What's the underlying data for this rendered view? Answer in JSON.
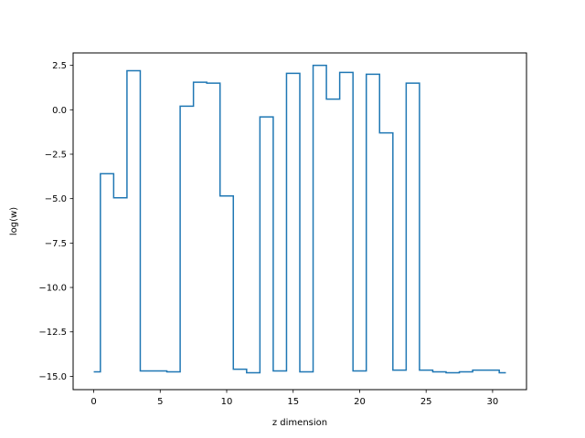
{
  "chart_data": {
    "type": "line",
    "drawstyle": "steps-mid",
    "title": "",
    "xlabel": "z dimension",
    "ylabel": "log(w)",
    "xlim": [
      -1.55,
      32.55
    ],
    "ylim": [
      -15.75,
      3.2
    ],
    "xticks": [
      0,
      5,
      10,
      15,
      20,
      25,
      30
    ],
    "xtick_labels": [
      "0",
      "5",
      "10",
      "15",
      "20",
      "25",
      "30"
    ],
    "yticks": [
      2.5,
      0.0,
      -2.5,
      -5.0,
      -7.5,
      -10.0,
      -12.5,
      -15.0
    ],
    "ytick_labels": [
      "2.5",
      "0.0",
      "−2.5",
      "−5.0",
      "−7.5",
      "−10.0",
      "−12.5",
      "−15.0"
    ],
    "grid": false,
    "legend": "none",
    "colors": {
      "line": "#1f77b4"
    },
    "x": [
      0,
      1,
      2,
      3,
      4,
      5,
      6,
      7,
      8,
      9,
      10,
      11,
      12,
      13,
      14,
      15,
      16,
      17,
      18,
      19,
      20,
      21,
      22,
      23,
      24,
      25,
      26,
      27,
      28,
      29,
      30,
      31
    ],
    "values": [
      -14.75,
      -3.6,
      -4.95,
      2.2,
      -14.7,
      -14.7,
      -14.75,
      0.2,
      1.55,
      1.5,
      -4.85,
      -14.6,
      -14.8,
      -0.4,
      -14.7,
      2.05,
      -14.75,
      2.5,
      0.6,
      2.1,
      -14.7,
      2.0,
      -1.3,
      -14.65,
      1.5,
      -14.65,
      -14.75,
      -14.8,
      -14.75,
      -14.65,
      -14.65,
      -14.8
    ]
  }
}
